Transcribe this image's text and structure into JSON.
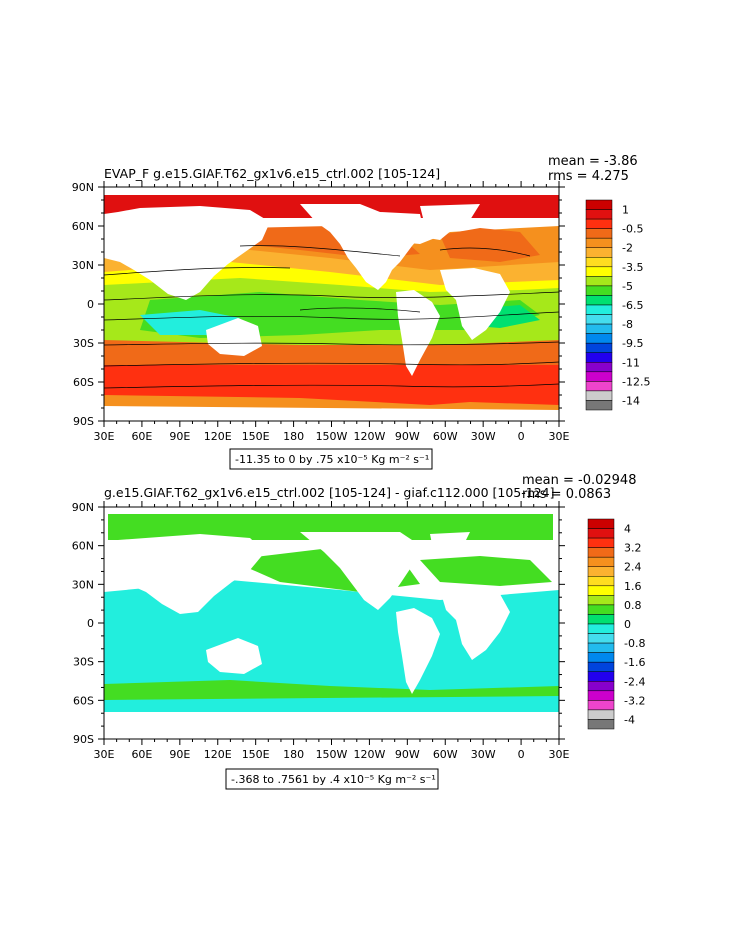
{
  "chart_data": [
    {
      "type": "heatmap",
      "title": "EVAP_F  g.e15.GIAF.T62_gx1v6.e15_ctrl.002  [105-124]",
      "mean": "mean = -3.86",
      "rms": "rms = 4.275",
      "range_label": "-11.35 to 0 by .75 x10⁻⁵ Kg m⁻² s⁻¹",
      "x_ticks": [
        "30E",
        "60E",
        "90E",
        "120E",
        "150E",
        "180",
        "150W",
        "120W",
        "90W",
        "60W",
        "30W",
        "0",
        "30E"
      ],
      "y_ticks": [
        "90N",
        "60N",
        "30N",
        "0",
        "30S",
        "60S",
        "90S"
      ],
      "colorbar_labels": [
        "1",
        "-0.5",
        "-2",
        "-3.5",
        "-5",
        "-6.5",
        "-8",
        "-9.5",
        "-11",
        "-12.5",
        "-14"
      ],
      "colorbar_colors": [
        "#cc0000",
        "#e01010",
        "#ff3010",
        "#f06a18",
        "#f5901e",
        "#fbb230",
        "#ffdd20",
        "#ffff00",
        "#a6e81a",
        "#44dd22",
        "#00e070",
        "#22eedd",
        "#44ddee",
        "#22bbee",
        "#0088ee",
        "#0044dd",
        "#2200ee",
        "#8800cc",
        "#cc00cc",
        "#ee44cc",
        "#cccccc",
        "#777777"
      ]
    },
    {
      "type": "heatmap",
      "title": "g.e15.GIAF.T62_gx1v6.e15_ctrl.002  [105-124]  -  giaf.c112.000  [105-124]",
      "mean": "mean = -0.02948",
      "rms": "rms = 0.0863",
      "range_label": "-.368 to .7561 by .4 x10⁻⁵ Kg m⁻² s⁻¹",
      "x_ticks": [
        "30E",
        "60E",
        "90E",
        "120E",
        "150E",
        "180",
        "150W",
        "120W",
        "90W",
        "60W",
        "30W",
        "0",
        "30E"
      ],
      "y_ticks": [
        "90N",
        "60N",
        "30N",
        "0",
        "30S",
        "60S",
        "90S"
      ],
      "colorbar_labels": [
        "4",
        "3.2",
        "2.4",
        "1.6",
        "0.8",
        "0",
        "-0.8",
        "-1.6",
        "-2.4",
        "-3.2",
        "-4"
      ],
      "colorbar_colors": [
        "#cc0000",
        "#e01010",
        "#ff3010",
        "#f06a18",
        "#f5901e",
        "#fbb230",
        "#ffdd20",
        "#ffff00",
        "#a6e81a",
        "#44dd22",
        "#00e070",
        "#22eedd",
        "#44ddee",
        "#22bbee",
        "#0088ee",
        "#0044dd",
        "#2200ee",
        "#8800cc",
        "#cc00cc",
        "#ee44cc",
        "#cccccc",
        "#777777"
      ]
    }
  ]
}
